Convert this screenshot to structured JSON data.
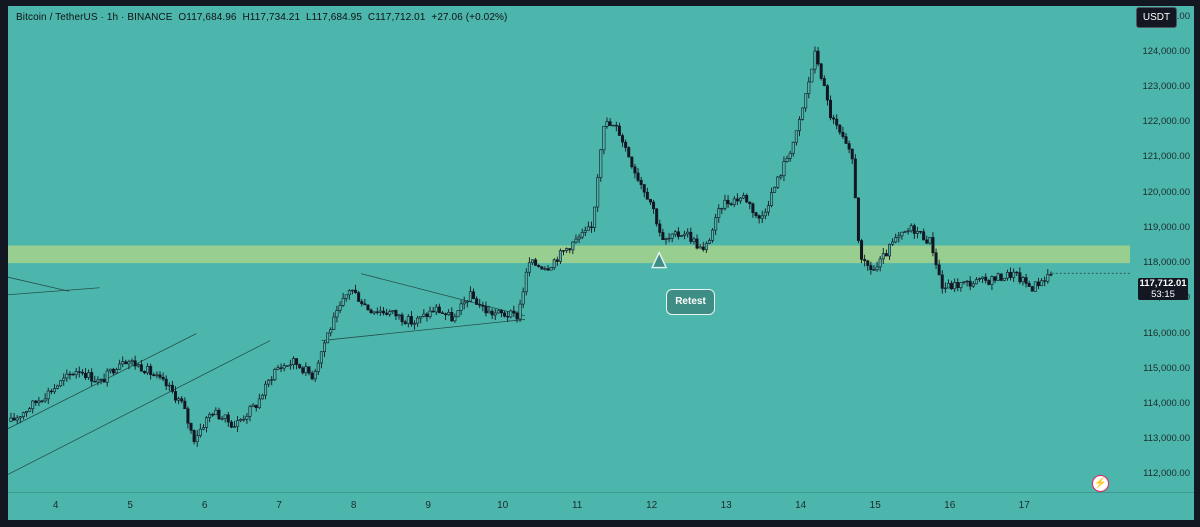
{
  "header": {
    "symbol": "Bitcoin / TetherUS · 1h · BINANCE",
    "open": "O117,684.96",
    "high": "H117,734.21",
    "low": "L117,684.95",
    "close": "C117,712.01",
    "change": "+27.06 (+0.02%)"
  },
  "currency_button": "USDT",
  "price_tag": {
    "price": "117,712.01",
    "countdown": "53:15"
  },
  "annotation": {
    "label": "Retest"
  },
  "colors": {
    "background": "#4db6ac",
    "candle": "#131722",
    "zone": "#a6d28a",
    "frame": "#131722"
  },
  "icons": {
    "lightning": "lightning-icon"
  },
  "chart_data": {
    "type": "candlestick",
    "title": "",
    "xlabel": "",
    "ylabel": "",
    "x_tick_labels": [
      "4",
      "5",
      "6",
      "7",
      "8",
      "9",
      "10",
      "11",
      "12",
      "13",
      "14",
      "15",
      "16",
      "17"
    ],
    "x_tick_day": [
      4,
      5,
      6,
      7,
      8,
      9,
      10,
      11,
      12,
      13,
      14,
      15,
      16,
      17
    ],
    "y_tick_labels": [
      "125,000.00",
      "124,000.00",
      "123,000.00",
      "122,000.00",
      "121,000.00",
      "120,000.00",
      "119,000.00",
      "118,000.00",
      "117,000.00",
      "116,000.00",
      "115,000.00",
      "114,000.00",
      "113,000.00",
      "112,000.00"
    ],
    "y_tick_values": [
      125000,
      124000,
      123000,
      122000,
      121000,
      120000,
      119000,
      118000,
      117000,
      116000,
      115000,
      114000,
      113000,
      112000
    ],
    "ylim": [
      111500,
      125300
    ],
    "xlim": [
      3.36,
      18.42
    ],
    "price_path": [
      {
        "day": 3.4,
        "price": 113500
      },
      {
        "day": 3.7,
        "price": 114000
      },
      {
        "day": 4.0,
        "price": 114500
      },
      {
        "day": 4.3,
        "price": 115000
      },
      {
        "day": 4.6,
        "price": 114600
      },
      {
        "day": 4.9,
        "price": 115300
      },
      {
        "day": 5.2,
        "price": 115000
      },
      {
        "day": 5.5,
        "price": 114500
      },
      {
        "day": 5.7,
        "price": 114000
      },
      {
        "day": 5.85,
        "price": 113000
      },
      {
        "day": 6.1,
        "price": 113800
      },
      {
        "day": 6.4,
        "price": 113400
      },
      {
        "day": 6.7,
        "price": 114000
      },
      {
        "day": 6.95,
        "price": 115000
      },
      {
        "day": 7.2,
        "price": 115200
      },
      {
        "day": 7.45,
        "price": 114800
      },
      {
        "day": 7.65,
        "price": 116000
      },
      {
        "day": 7.95,
        "price": 117300
      },
      {
        "day": 8.2,
        "price": 116700
      },
      {
        "day": 8.5,
        "price": 116600
      },
      {
        "day": 8.8,
        "price": 116300
      },
      {
        "day": 9.1,
        "price": 116700
      },
      {
        "day": 9.35,
        "price": 116400
      },
      {
        "day": 9.55,
        "price": 117100
      },
      {
        "day": 9.8,
        "price": 116600
      },
      {
        "day": 10.2,
        "price": 116500
      },
      {
        "day": 10.35,
        "price": 118000
      },
      {
        "day": 10.6,
        "price": 117900
      },
      {
        "day": 10.9,
        "price": 118500
      },
      {
        "day": 11.2,
        "price": 119000
      },
      {
        "day": 11.35,
        "price": 122000
      },
      {
        "day": 11.55,
        "price": 121800
      },
      {
        "day": 11.8,
        "price": 120500
      },
      {
        "day": 12.0,
        "price": 119700
      },
      {
        "day": 12.15,
        "price": 118600
      },
      {
        "day": 12.45,
        "price": 118900
      },
      {
        "day": 12.7,
        "price": 118300
      },
      {
        "day": 12.95,
        "price": 119700
      },
      {
        "day": 13.25,
        "price": 119900
      },
      {
        "day": 13.45,
        "price": 119200
      },
      {
        "day": 13.7,
        "price": 120400
      },
      {
        "day": 13.95,
        "price": 121700
      },
      {
        "day": 14.2,
        "price": 124000
      },
      {
        "day": 14.4,
        "price": 122200
      },
      {
        "day": 14.7,
        "price": 120900
      },
      {
        "day": 14.8,
        "price": 118000
      },
      {
        "day": 15.0,
        "price": 117800
      },
      {
        "day": 15.25,
        "price": 118600
      },
      {
        "day": 15.5,
        "price": 119000
      },
      {
        "day": 15.75,
        "price": 118600
      },
      {
        "day": 15.9,
        "price": 117300
      },
      {
        "day": 16.15,
        "price": 117400
      },
      {
        "day": 16.5,
        "price": 117500
      },
      {
        "day": 16.85,
        "price": 117700
      },
      {
        "day": 17.1,
        "price": 117300
      },
      {
        "day": 17.35,
        "price": 117700
      }
    ],
    "zone": {
      "from": 118000,
      "to": 118500
    },
    "trendlines": [
      {
        "from": {
          "day": 3.36,
          "price": 113300
        },
        "to": {
          "day": 5.89,
          "price": 116000
        }
      },
      {
        "from": {
          "day": 3.36,
          "price": 112000
        },
        "to": {
          "day": 6.88,
          "price": 115800
        }
      },
      {
        "from": {
          "day": 3.36,
          "price": 117100
        },
        "to": {
          "day": 4.59,
          "price": 117300
        }
      },
      {
        "from": {
          "day": 3.36,
          "price": 117600
        },
        "to": {
          "day": 4.18,
          "price": 117200
        }
      },
      {
        "from": {
          "day": 7.57,
          "price": 115800
        },
        "to": {
          "day": 10.3,
          "price": 116400
        }
      },
      {
        "from": {
          "day": 8.1,
          "price": 117700
        },
        "to": {
          "day": 10.3,
          "price": 116500
        }
      }
    ],
    "retest_point": {
      "day": 12.1,
      "price": 118300
    },
    "last_price": 117712.01,
    "grid": false,
    "legend": "none"
  }
}
